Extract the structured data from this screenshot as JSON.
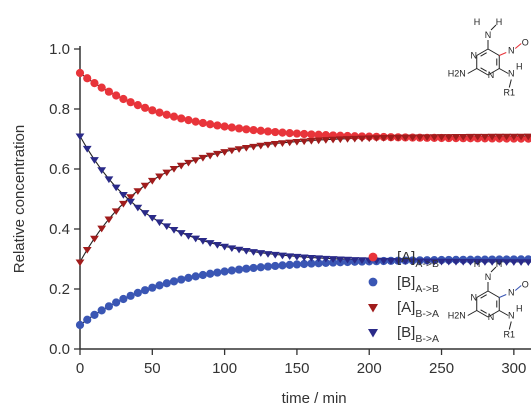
{
  "chart_data": {
    "type": "scatter",
    "xlabel": "time / min",
    "ylabel": "Relative concentration",
    "xlim": [
      0,
      310
    ],
    "ylim": [
      0.0,
      1.0
    ],
    "x_ticks": [
      0,
      50,
      100,
      150,
      200,
      250,
      300
    ],
    "y_ticks": [
      0.0,
      0.2,
      0.4,
      0.6,
      0.8,
      1.0
    ],
    "x_tick_labels": [
      "0",
      "50",
      "100",
      "150",
      "200",
      "250",
      "300"
    ],
    "y_tick_labels": [
      "0.0",
      "0.2",
      "0.4",
      "0.6",
      "0.8",
      "1.0"
    ],
    "grid": false,
    "legend_position": "right",
    "fit_line_color": "#222222",
    "series": [
      {
        "name": "[A]A->B",
        "label_main": "[A]",
        "label_sub": "A->B",
        "marker": "circle",
        "color": "#e8343a",
        "start": 0.92,
        "end": 0.7,
        "tau": 60,
        "x_start": 0,
        "x_step": 5,
        "count": 63
      },
      {
        "name": "[B]A->B",
        "label_main": "[B]",
        "label_sub": "A->B",
        "marker": "circle",
        "color": "#3a56b4",
        "start": 0.08,
        "end": 0.3,
        "tau": 60,
        "x_start": 0,
        "x_step": 5,
        "count": 63
      },
      {
        "name": "[A]B->A",
        "label_main": "[A]",
        "label_sub": "B->A",
        "marker": "triangle-down",
        "color": "#a01c1c",
        "start": 0.29,
        "end": 0.71,
        "tau": 48,
        "x_start": 0,
        "x_step": 5,
        "count": 63
      },
      {
        "name": "[B]B->A",
        "label_main": "[B]",
        "label_sub": "B->A",
        "marker": "triangle-down",
        "color": "#2a2a88",
        "start": 0.71,
        "end": 0.29,
        "tau": 48,
        "x_start": 0,
        "x_step": 5,
        "count": 63
      }
    ]
  },
  "structures": {
    "top": {
      "color": "#e8343a",
      "labels": {
        "n_top": "N",
        "h_top": "H",
        "h_top2": "H",
        "nitroso_n": "N",
        "nitroso_o": "O",
        "n_ring_upper": "N",
        "n_ring_lower": "N",
        "amino_nh2": "H2N",
        "amine_n": "N",
        "amine_h": "H",
        "r1": "R1"
      }
    },
    "bottom": {
      "color": "#3a56b4",
      "labels": {
        "n_top": "N",
        "h_top": "H",
        "h_top2": "H",
        "nitroso_n": "N",
        "nitroso_o": "O",
        "n_ring_upper": "N",
        "n_ring_lower": "N",
        "amino_nh2": "H2N",
        "amine_n": "N",
        "amine_h": "H",
        "r1": "R1"
      }
    }
  }
}
